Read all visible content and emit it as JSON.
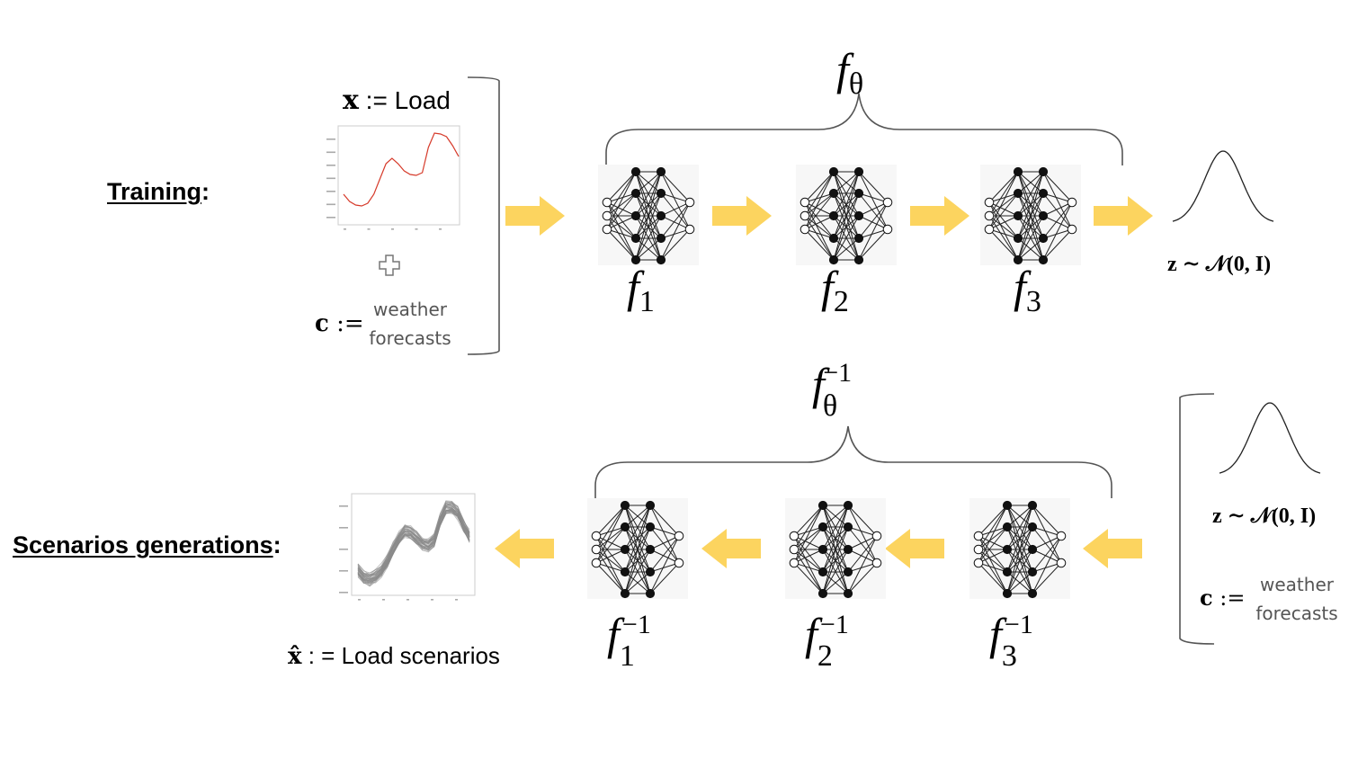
{
  "training": {
    "label": "Training",
    "colon": ":",
    "x_symbol": "x",
    "x_assign": " := Load",
    "c_symbol": "c",
    "c_assign": " :=",
    "c_text_line1": "weather",
    "c_text_line2": "forecasts",
    "f_theta": {
      "f": "f",
      "sub": "θ"
    },
    "blocks": [
      {
        "f": "f",
        "sub": "1"
      },
      {
        "f": "f",
        "sub": "2"
      },
      {
        "f": "f",
        "sub": "3"
      }
    ],
    "z_formula": "z ∼ 𝒩(0, I)"
  },
  "generation": {
    "label": "Scenarios generations",
    "colon": ":",
    "xhat_symbol": "x̂",
    "xhat_assign": " : = Load scenarios",
    "c_symbol": "c",
    "c_assign": " :=",
    "c_text_line1": "weather",
    "c_text_line2": "forecasts",
    "f_theta_inv": {
      "f": "f",
      "sub": "θ",
      "sup": "−1"
    },
    "blocks": [
      {
        "f": "f",
        "sub": "1",
        "sup": "−1"
      },
      {
        "f": "f",
        "sub": "2",
        "sup": "−1"
      },
      {
        "f": "f",
        "sub": "3",
        "sup": "−1"
      }
    ],
    "z_formula": "z ∼ 𝒩(0, I)"
  },
  "colors": {
    "arrow": "#fcd45f",
    "load_curve": "#d63a2a",
    "scenario_curves": "#8a8a8a",
    "brace": "#555555"
  }
}
